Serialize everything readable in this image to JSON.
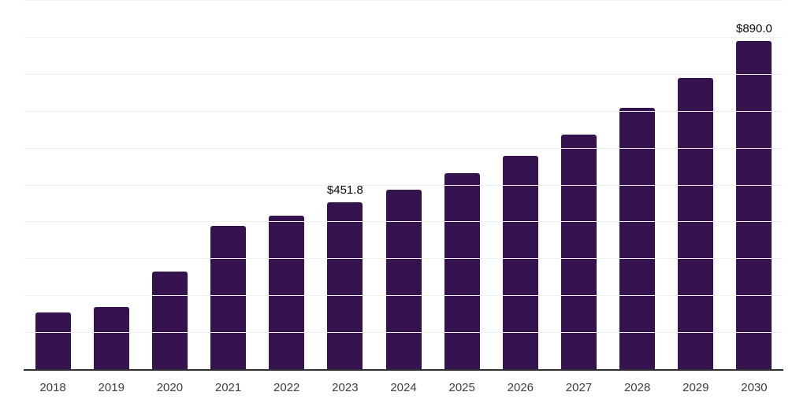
{
  "chart_data": {
    "type": "bar",
    "title": "",
    "xlabel": "",
    "ylabel": "",
    "categories": [
      "2018",
      "2019",
      "2020",
      "2021",
      "2022",
      "2023",
      "2024",
      "2025",
      "2026",
      "2027",
      "2028",
      "2029",
      "2030"
    ],
    "values": [
      153,
      168,
      264,
      388,
      415,
      451.8,
      486,
      530,
      577,
      635,
      707,
      790,
      890
    ],
    "data_labels": [
      "",
      "",
      "",
      "",
      "",
      "$451.8",
      "",
      "",
      "",
      "",
      "",
      "",
      "$890.0"
    ],
    "ylim": [
      0,
      1000
    ],
    "gridline_step": 100,
    "grid": true,
    "legend": "none",
    "y_tick_labels": "none",
    "colors": {
      "bar": "#34134e",
      "gridline": "#f0f0f1",
      "axis_line": "#2f2f2f",
      "x_tick_label": "#3f3f3f",
      "data_label": "#0a0a0a",
      "background": "#ffffff"
    }
  }
}
